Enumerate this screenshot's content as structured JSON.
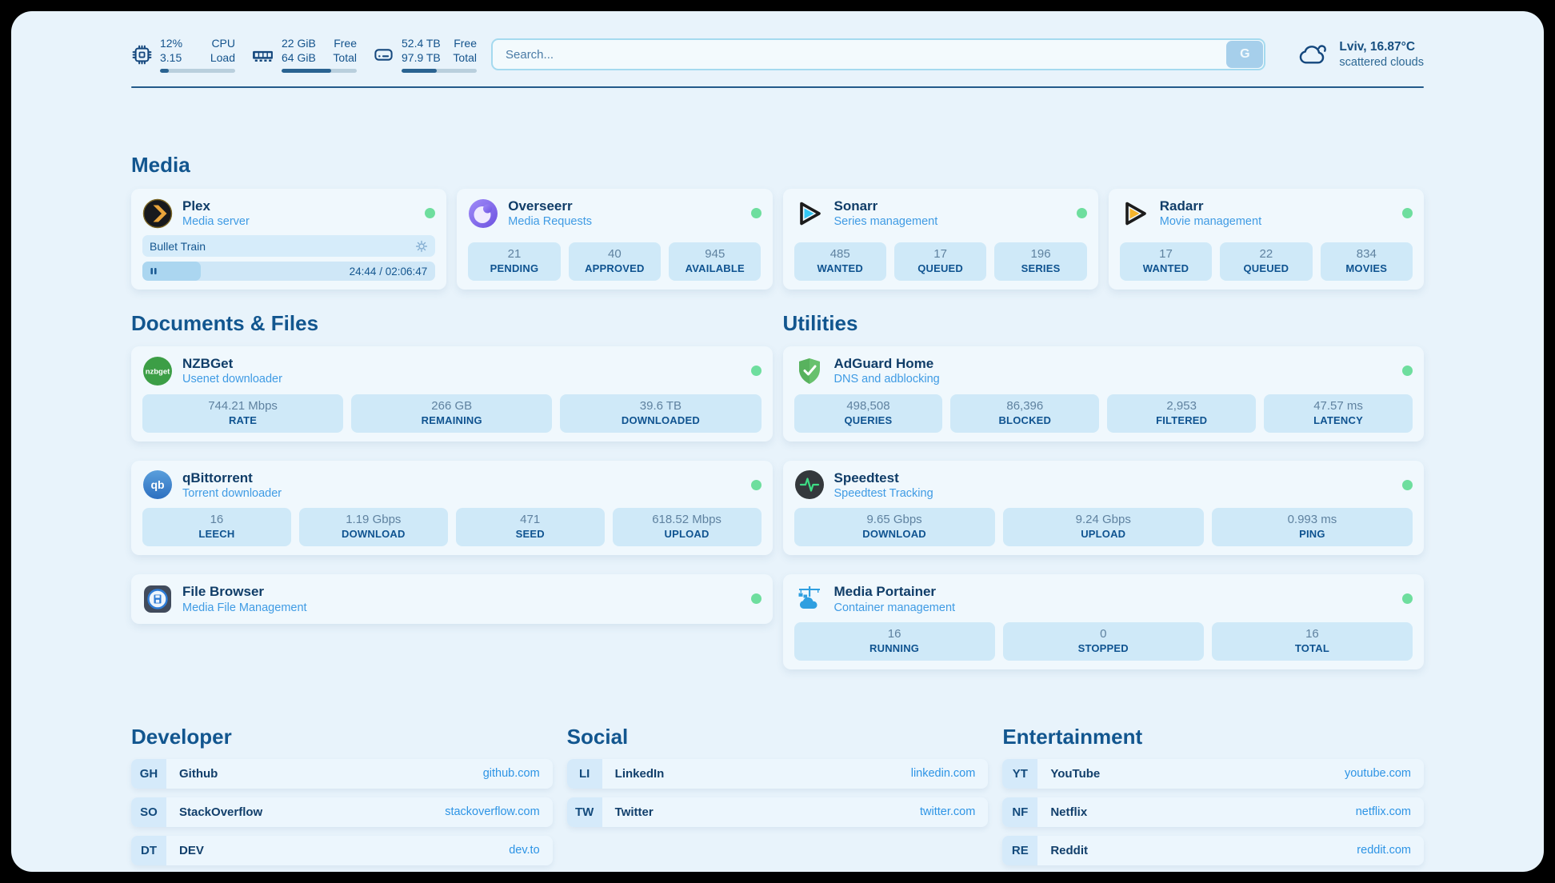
{
  "colors": {
    "status_online": "#6ede9e",
    "accent": "#2d94e5",
    "heading": "#12568f"
  },
  "header": {
    "metrics": [
      {
        "icon": "cpu-icon",
        "values": [
          "12%",
          "3.15"
        ],
        "labels": [
          "CPU",
          "Load"
        ],
        "progress": 12
      },
      {
        "icon": "memory-icon",
        "values": [
          "22 GiB",
          "64 GiB"
        ],
        "labels": [
          "Free",
          "Total"
        ],
        "progress": 66
      },
      {
        "icon": "disk-icon",
        "values": [
          "52.4 TB",
          "97.9 TB"
        ],
        "labels": [
          "Free",
          "Total"
        ],
        "progress": 47
      }
    ],
    "search": {
      "placeholder": "Search...",
      "button": "G"
    },
    "weather": {
      "title": "Lviv, 16.87°C",
      "subtitle": "scattered clouds"
    }
  },
  "sections": {
    "media": {
      "title": "Media",
      "plex": {
        "name": "Plex",
        "subtitle": "Media server",
        "now_playing": "Bullet Train",
        "time": "24:44 / 02:06:47",
        "progress": 20
      },
      "overseerr": {
        "name": "Overseerr",
        "subtitle": "Media Requests",
        "stats": [
          {
            "value": "21",
            "label": "PENDING"
          },
          {
            "value": "40",
            "label": "APPROVED"
          },
          {
            "value": "945",
            "label": "AVAILABLE"
          }
        ]
      },
      "sonarr": {
        "name": "Sonarr",
        "subtitle": "Series management",
        "stats": [
          {
            "value": "485",
            "label": "WANTED"
          },
          {
            "value": "17",
            "label": "QUEUED"
          },
          {
            "value": "196",
            "label": "SERIES"
          }
        ]
      },
      "radarr": {
        "name": "Radarr",
        "subtitle": "Movie management",
        "stats": [
          {
            "value": "17",
            "label": "WANTED"
          },
          {
            "value": "22",
            "label": "QUEUED"
          },
          {
            "value": "834",
            "label": "MOVIES"
          }
        ]
      }
    },
    "documents": {
      "title": "Documents & Files",
      "nzbget": {
        "name": "NZBGet",
        "subtitle": "Usenet downloader",
        "stats": [
          {
            "value": "744.21 Mbps",
            "label": "RATE"
          },
          {
            "value": "266 GB",
            "label": "REMAINING"
          },
          {
            "value": "39.6 TB",
            "label": "DOWNLOADED"
          }
        ]
      },
      "qbittorrent": {
        "name": "qBittorrent",
        "subtitle": "Torrent downloader",
        "stats": [
          {
            "value": "16",
            "label": "LEECH"
          },
          {
            "value": "1.19 Gbps",
            "label": "DOWNLOAD"
          },
          {
            "value": "471",
            "label": "SEED"
          },
          {
            "value": "618.52 Mbps",
            "label": "UPLOAD"
          }
        ]
      },
      "filebrowser": {
        "name": "File Browser",
        "subtitle": "Media File Management"
      }
    },
    "utilities": {
      "title": "Utilities",
      "adguard": {
        "name": "AdGuard Home",
        "subtitle": "DNS and adblocking",
        "stats": [
          {
            "value": "498,508",
            "label": "QUERIES"
          },
          {
            "value": "86,396",
            "label": "BLOCKED"
          },
          {
            "value": "2,953",
            "label": "FILTERED"
          },
          {
            "value": "47.57 ms",
            "label": "LATENCY"
          }
        ]
      },
      "speedtest": {
        "name": "Speedtest",
        "subtitle": "Speedtest Tracking",
        "stats": [
          {
            "value": "9.65 Gbps",
            "label": "DOWNLOAD"
          },
          {
            "value": "9.24 Gbps",
            "label": "UPLOAD"
          },
          {
            "value": "0.993 ms",
            "label": "PING"
          }
        ]
      },
      "portainer": {
        "name": "Media Portainer",
        "subtitle": "Container management",
        "stats": [
          {
            "value": "16",
            "label": "RUNNING"
          },
          {
            "value": "0",
            "label": "STOPPED"
          },
          {
            "value": "16",
            "label": "TOTAL"
          }
        ]
      }
    },
    "bookmarks": [
      {
        "title": "Developer",
        "links": [
          {
            "abbr": "GH",
            "name": "Github",
            "url": "github.com"
          },
          {
            "abbr": "SO",
            "name": "StackOverflow",
            "url": "stackoverflow.com"
          },
          {
            "abbr": "DT",
            "name": "DEV",
            "url": "dev.to"
          }
        ]
      },
      {
        "title": "Social",
        "links": [
          {
            "abbr": "LI",
            "name": "LinkedIn",
            "url": "linkedin.com"
          },
          {
            "abbr": "TW",
            "name": "Twitter",
            "url": "twitter.com"
          }
        ]
      },
      {
        "title": "Entertainment",
        "links": [
          {
            "abbr": "YT",
            "name": "YouTube",
            "url": "youtube.com"
          },
          {
            "abbr": "NF",
            "name": "Netflix",
            "url": "netflix.com"
          },
          {
            "abbr": "RE",
            "name": "Reddit",
            "url": "reddit.com"
          }
        ]
      }
    ]
  }
}
